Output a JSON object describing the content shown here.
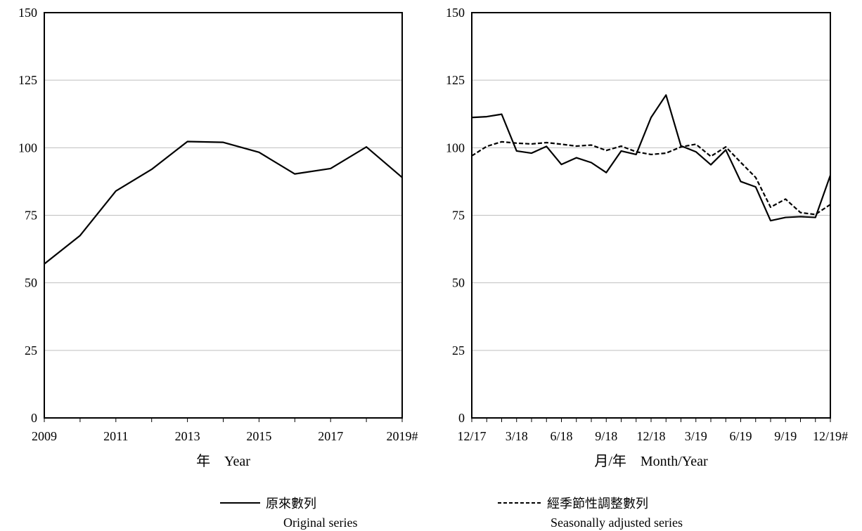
{
  "chart_data": [
    {
      "type": "line",
      "xlabel": "年　Year",
      "ylabel": "",
      "ylim": [
        0,
        150
      ],
      "yticks": [
        "0",
        "25",
        "50",
        "75",
        "100",
        "125",
        "150"
      ],
      "grid": true,
      "x": [
        "2009",
        "2010",
        "2011",
        "2012",
        "2013",
        "2014",
        "2015",
        "2016",
        "2017",
        "2018",
        "2019#"
      ],
      "x_tick_labels": [
        "2009",
        "2011",
        "2013",
        "2015",
        "2017",
        "2019#"
      ],
      "series": [
        {
          "name": "原來數列",
          "style": "solid",
          "values": [
            57,
            67.5,
            84,
            92,
            102.3,
            102,
            98.3,
            90.3,
            92.3,
            100.3,
            89
          ]
        }
      ]
    },
    {
      "type": "line",
      "xlabel": "月/年　Month/Year",
      "ylabel": "",
      "ylim": [
        0,
        150
      ],
      "yticks": [
        "0",
        "25",
        "50",
        "75",
        "100",
        "125",
        "150"
      ],
      "grid": true,
      "x": [
        "12/17",
        "1/18",
        "2/18",
        "3/18",
        "4/18",
        "5/18",
        "6/18",
        "7/18",
        "8/18",
        "9/18",
        "10/18",
        "11/18",
        "12/18",
        "1/19",
        "2/19",
        "3/19",
        "4/19",
        "5/19",
        "6/19",
        "7/19",
        "8/19",
        "9/19",
        "10/19",
        "11/19",
        "12/19#"
      ],
      "x_tick_labels": [
        "12/17",
        "3/18",
        "6/18",
        "9/18",
        "12/18",
        "3/19",
        "6/19",
        "9/19",
        "12/19#"
      ],
      "series": [
        {
          "name": "原來數列",
          "style": "solid",
          "values": [
            111.2,
            111.5,
            112.4,
            98.8,
            98.0,
            100.5,
            93.8,
            96.3,
            94.5,
            90.8,
            98.8,
            97.5,
            111.2,
            119.5,
            100.7,
            98.5,
            93.7,
            99.2,
            87.5,
            85.5,
            73.0,
            74.2,
            74.5,
            74.2,
            89.8
          ]
        },
        {
          "name": "經季節性調整數列",
          "style": "dashed",
          "values": [
            97.0,
            100.5,
            102.2,
            101.7,
            101.4,
            101.9,
            101.3,
            100.6,
            101.0,
            99.0,
            100.6,
            98.5,
            97.5,
            98.0,
            100.3,
            101.3,
            96.8,
            100.3,
            94.6,
            89.0,
            78.0,
            81.0,
            76.0,
            75.3,
            79.0
          ]
        }
      ]
    }
  ],
  "legend": {
    "original": {
      "zh": "原來數列",
      "en": "Original series"
    },
    "seasonal": {
      "zh": "經季節性調整數列",
      "en": "Seasonally adjusted series"
    }
  }
}
